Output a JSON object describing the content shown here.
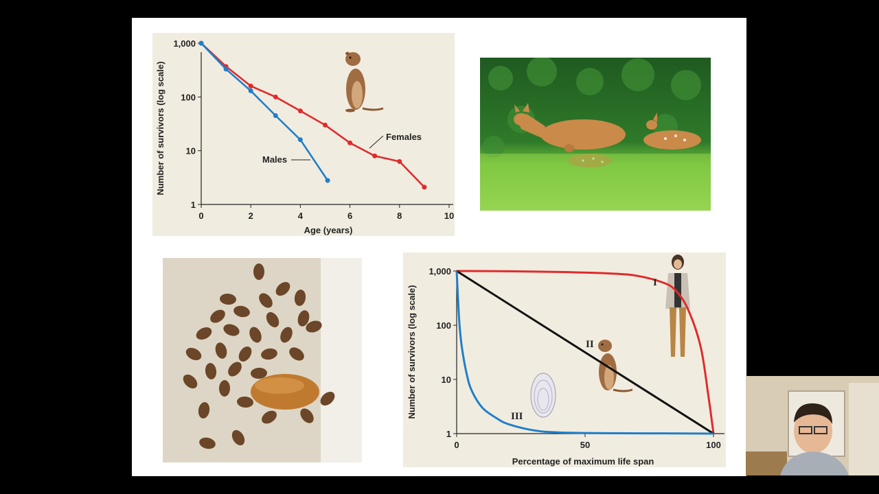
{
  "charts": {
    "squirrel": {
      "ylabel": "Number of survivors (log scale)",
      "xlabel": "Age (years)",
      "x_ticks": [
        "0",
        "2",
        "4",
        "6",
        "8",
        "10"
      ],
      "y_ticks": [
        "1",
        "10",
        "100",
        "1,000"
      ],
      "females_label": "Females",
      "males_label": "Males"
    },
    "idealized": {
      "ylabel": "Number of survivors (log scale)",
      "xlabel": "Percentage of maximum life span",
      "x_ticks": [
        "0",
        "50",
        "100"
      ],
      "y_ticks": [
        "1",
        "10",
        "100",
        "1,000"
      ],
      "type_labels": [
        "I",
        "II",
        "III"
      ]
    }
  },
  "chart_data": [
    {
      "type": "line",
      "xlabel": "Age (years)",
      "ylabel": "Number of survivors (log scale)",
      "xlim": [
        0,
        10
      ],
      "ylim": [
        1,
        1000
      ],
      "y_scale": "log",
      "grid": false,
      "series": [
        {
          "name": "Females",
          "color": "#e02b2b",
          "x": [
            0,
            1,
            2,
            3,
            4,
            5,
            6,
            7,
            8,
            9
          ],
          "y": [
            1000,
            370,
            160,
            100,
            55,
            30,
            14,
            8,
            6.3,
            2.1
          ]
        },
        {
          "name": "Males",
          "color": "#1f7fc9",
          "x": [
            0,
            1,
            2,
            3,
            4,
            5.1
          ],
          "y": [
            1000,
            330,
            130,
            45,
            16,
            2.8
          ]
        }
      ]
    },
    {
      "type": "line",
      "xlabel": "Percentage of maximum life span",
      "ylabel": "Number of survivors (log scale)",
      "xlim": [
        0,
        100
      ],
      "ylim": [
        1,
        1000
      ],
      "y_scale": "log",
      "grid": false,
      "series": [
        {
          "name": "I",
          "color": "#e02b2b",
          "x": [
            0,
            20,
            40,
            60,
            70,
            80,
            85,
            90,
            95,
            98,
            100
          ],
          "y": [
            1000,
            990,
            960,
            900,
            820,
            620,
            450,
            200,
            40,
            5,
            1
          ]
        },
        {
          "name": "II",
          "color": "#111111",
          "x": [
            0,
            100
          ],
          "y": [
            1000,
            1
          ]
        },
        {
          "name": "III",
          "color": "#1f7fc9",
          "x": [
            0,
            1,
            2,
            4,
            6,
            10,
            15,
            20,
            30,
            40,
            60,
            80,
            100
          ],
          "y": [
            1000,
            120,
            40,
            12,
            6,
            3,
            2,
            1.5,
            1.15,
            1.05,
            1.02,
            1.01,
            1
          ]
        }
      ]
    }
  ],
  "colors": {
    "females": "#e02b2b",
    "males": "#1f7fc9",
    "type2": "#111111",
    "plot_bg": "#f1ece0"
  }
}
